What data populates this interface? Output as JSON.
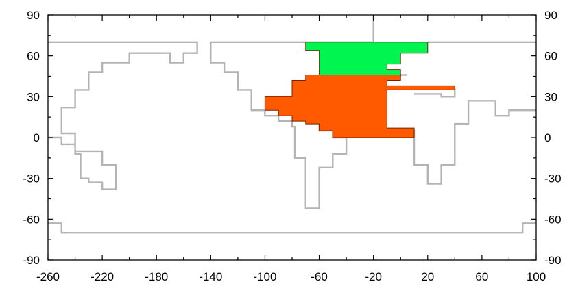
{
  "map": {
    "x_range": [
      -260,
      100
    ],
    "y_range": [
      -90,
      90
    ],
    "x_ticks": [
      -260,
      -220,
      -180,
      -140,
      -100,
      -60,
      -20,
      20,
      60,
      100
    ],
    "y_ticks": [
      90,
      60,
      30,
      0,
      -30,
      -60,
      -90
    ],
    "colors": {
      "background": "#ffffff",
      "axis": "#000000",
      "coastline": "#b4b4b4",
      "region_green": "#00f550",
      "region_orange": "#ff5a00"
    },
    "coastlines": [
      [
        [
          -260,
          70
        ],
        [
          -150,
          70
        ],
        [
          -150,
          62
        ],
        [
          -160,
          62
        ],
        [
          -160,
          55
        ],
        [
          -170,
          55
        ],
        [
          -170,
          62
        ],
        [
          -200,
          62
        ],
        [
          -200,
          55
        ],
        [
          -220,
          55
        ],
        [
          -220,
          48
        ],
        [
          -230,
          48
        ],
        [
          -230,
          35
        ],
        [
          -240,
          35
        ],
        [
          -240,
          22
        ],
        [
          -250,
          22
        ],
        [
          -250,
          3
        ],
        [
          -240,
          3
        ],
        [
          -240,
          -12
        ],
        [
          -236,
          -12
        ],
        [
          -236,
          -30
        ],
        [
          -230,
          -30
        ],
        [
          -230,
          -33
        ],
        [
          -220,
          -33
        ],
        [
          -220,
          -38
        ],
        [
          -210,
          -38
        ],
        [
          -210,
          -20
        ],
        [
          -220,
          -20
        ],
        [
          -220,
          -10
        ],
        [
          -240,
          -10
        ],
        [
          -240,
          -5
        ],
        [
          -250,
          -5
        ],
        [
          -250,
          0
        ],
        [
          -260,
          0
        ]
      ],
      [
        [
          -140,
          70
        ],
        [
          -20,
          70
        ]
      ],
      [
        [
          -140,
          70
        ],
        [
          -140,
          55
        ],
        [
          -130,
          55
        ],
        [
          -130,
          48
        ],
        [
          -120,
          48
        ],
        [
          -120,
          35
        ],
        [
          -110,
          35
        ],
        [
          -110,
          20
        ],
        [
          -100,
          20
        ],
        [
          -100,
          16
        ],
        [
          -90,
          16
        ],
        [
          -90,
          12
        ],
        [
          -80,
          12
        ],
        [
          -80,
          8
        ],
        [
          -78,
          8
        ],
        [
          -78,
          -15
        ],
        [
          -70,
          -15
        ],
        [
          -70,
          -52
        ],
        [
          -60,
          -52
        ],
        [
          -60,
          -22
        ],
        [
          -50,
          -22
        ],
        [
          -50,
          -12
        ],
        [
          -40,
          -12
        ],
        [
          -40,
          0
        ],
        [
          -50,
          0
        ],
        [
          -50,
          5
        ],
        [
          -60,
          5
        ],
        [
          -60,
          10
        ]
      ],
      [
        [
          -20,
          70
        ],
        [
          -20,
          90
        ]
      ],
      [
        [
          -10,
          46
        ],
        [
          5,
          46
        ]
      ],
      [
        [
          -10,
          36
        ],
        [
          40,
          36
        ],
        [
          40,
          30
        ],
        [
          30,
          30
        ],
        [
          30,
          32
        ],
        [
          10,
          32
        ]
      ],
      [
        [
          10,
          6
        ],
        [
          10,
          -20
        ],
        [
          20,
          -20
        ],
        [
          20,
          -34
        ],
        [
          30,
          -34
        ],
        [
          30,
          -20
        ],
        [
          40,
          -20
        ],
        [
          40,
          10
        ],
        [
          50,
          10
        ],
        [
          50,
          27
        ],
        [
          70,
          27
        ],
        [
          70,
          16
        ],
        [
          80,
          16
        ],
        [
          80,
          20
        ],
        [
          100,
          20
        ]
      ],
      [
        [
          -260,
          -63
        ],
        [
          -250,
          -63
        ],
        [
          -250,
          -70
        ],
        [
          90,
          -70
        ],
        [
          90,
          -63
        ],
        [
          100,
          -63
        ]
      ],
      [
        [
          20,
          70
        ],
        [
          100,
          70
        ]
      ]
    ],
    "regions": [
      {
        "color": "#00f550",
        "outline": [
          [
            -70,
            70
          ],
          [
            20,
            70
          ],
          [
            20,
            62
          ],
          [
            0,
            62
          ],
          [
            0,
            54
          ],
          [
            -10,
            54
          ],
          [
            -10,
            50
          ],
          [
            0,
            50
          ],
          [
            0,
            45
          ],
          [
            -60,
            45
          ],
          [
            -60,
            64
          ],
          [
            -70,
            64
          ]
        ]
      },
      {
        "color": "#ff5a00",
        "outline": [
          [
            -60,
            46
          ],
          [
            0,
            46
          ],
          [
            0,
            42
          ],
          [
            -10,
            42
          ],
          [
            -10,
            38
          ],
          [
            40,
            38
          ],
          [
            40,
            35
          ],
          [
            -10,
            35
          ],
          [
            -10,
            7
          ],
          [
            10,
            7
          ],
          [
            10,
            0
          ],
          [
            -50,
            0
          ],
          [
            -50,
            5
          ],
          [
            -60,
            5
          ],
          [
            -60,
            10
          ],
          [
            -70,
            10
          ],
          [
            -70,
            12
          ],
          [
            -80,
            12
          ],
          [
            -80,
            16
          ],
          [
            -90,
            16
          ],
          [
            -90,
            20
          ],
          [
            -100,
            20
          ],
          [
            -100,
            30
          ],
          [
            -80,
            30
          ],
          [
            -80,
            42
          ],
          [
            -70,
            42
          ],
          [
            -70,
            46
          ]
        ]
      }
    ]
  }
}
